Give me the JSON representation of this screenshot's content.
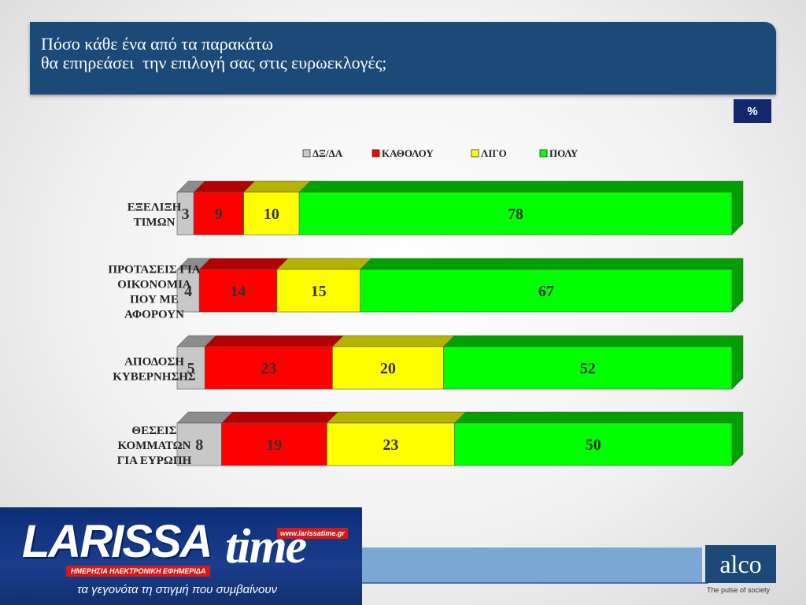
{
  "title": "Πόσο κάθε ένα από τα παρακάτω\nθα επηρεάσει  την επιλογή σας στις ευρωεκλογές;",
  "unit_badge": "%",
  "chart_data": {
    "type": "bar",
    "orientation": "horizontal",
    "stacked": true,
    "categories": [
      "ΕΞΕΛΙΞΗ\nΤΙΜΩΝ",
      "ΠΡΟΤΑΣΕΙΣ ΓΙΑ\nΟΙΚΟΝΟΜΙΑ\nΠΟΥ ΜΕ\nΑΦΟΡΟΥΝ",
      "ΑΠΟΔΟΣΗ\nΚΥΒΕΡΝΗΣΗΣ",
      "ΘΕΣΕΙΣ\nΚΟΜΜΑΤΩΝ\nΓΙΑ ΕΥΡΩΠΗ"
    ],
    "series": [
      {
        "name": "ΔΞ/ΔΑ",
        "color": "#c8c8c8",
        "side_color": "#8c8c8c",
        "values": [
          3,
          4,
          5,
          8
        ]
      },
      {
        "name": "ΚΑΘΟΛΟΥ",
        "color": "#ff0000",
        "side_color": "#b30000",
        "values": [
          9,
          14,
          23,
          19
        ]
      },
      {
        "name": "ΛΙΓΟ",
        "color": "#ffff00",
        "side_color": "#b3b300",
        "values": [
          10,
          15,
          20,
          23
        ]
      },
      {
        "name": "ΠΟΛΥ",
        "color": "#00ff00",
        "side_color": "#00a000",
        "values": [
          78,
          67,
          52,
          50
        ]
      }
    ],
    "xlim": [
      0,
      100
    ],
    "legend_position": "top",
    "data_labels": true,
    "grid": false
  },
  "watermark": {
    "brand_main": "LARISSA",
    "brand_second": "time",
    "url": "www.larissatime.gr",
    "subtitle": "ΗΜΕΡΗΣΙΑ ΗΛΕΚΤΡΟΝΙΚΗ ΕΦΗΜΕΡΙΔΑ",
    "slogan": "τα γεγονότα τη στιγμή που συμβαίνουν"
  },
  "pollster": {
    "logo": "alco",
    "tagline": "The pulse of society"
  }
}
